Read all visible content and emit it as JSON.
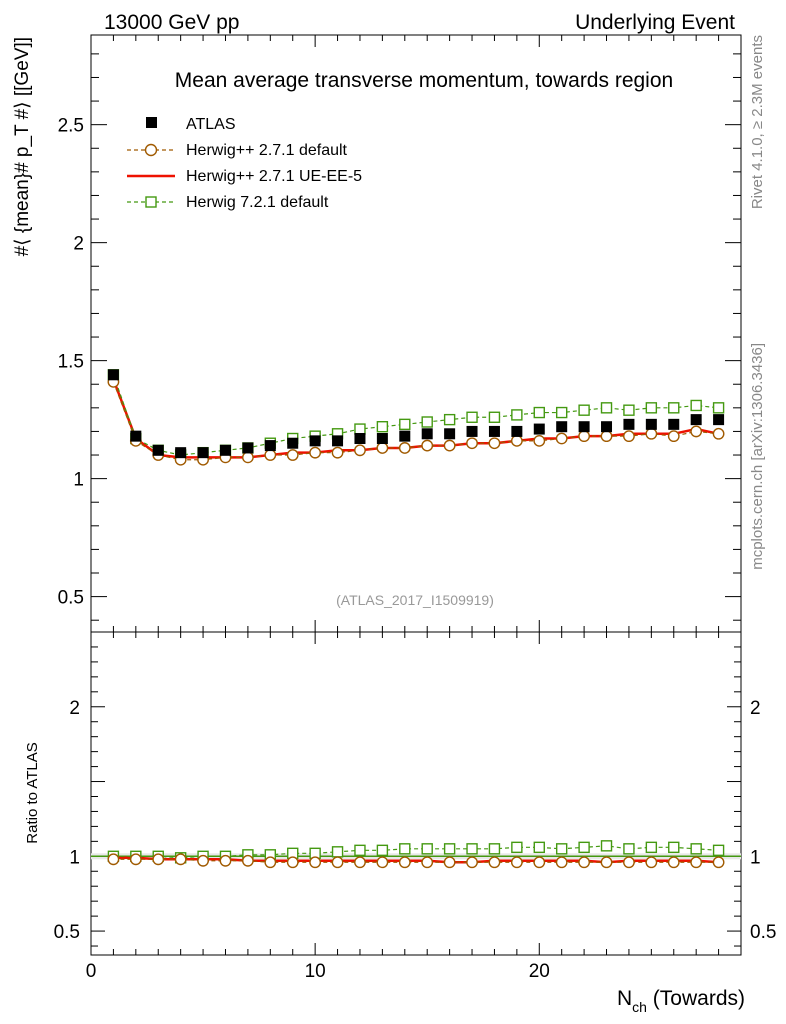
{
  "header": {
    "left": "13000 GeV pp",
    "right": "Underlying Event"
  },
  "side_labels": {
    "rivet": "Rivet 4.1.0, ≥ 2.3M events",
    "mcplots": "mcplots.cern.ch [arXiv:1306.3436]"
  },
  "colors": {
    "atlas": "#000000",
    "herwig_pp_default": "#a05a00",
    "herwig_pp_ueee5": "#ee1100",
    "herwig7_default": "#449911"
  },
  "chart_data": [
    {
      "type": "scatter",
      "title": "Mean average transverse momentum, towards region",
      "ylabel": "#⟨ {mean}# p_T #⟩ [[GeV]]",
      "xlabel": "N_ch (Towards)",
      "watermark": "(ATLAS_2017_I1509919)",
      "xlim": [
        0,
        29
      ],
      "ylim": [
        0.35,
        2.88
      ],
      "yticks": [
        0.5,
        1,
        1.5,
        2,
        2.5
      ],
      "ytick_labels": [
        "0.5",
        "1",
        "1.5",
        "2",
        "2.5"
      ],
      "legend": [
        "ATLAS",
        "Herwig++ 2.7.1 default",
        "Herwig++ 2.7.1 UE-EE-5",
        "Herwig 7.2.1 default"
      ],
      "legend_position": "top-left",
      "x": [
        1,
        2,
        3,
        4,
        5,
        6,
        7,
        8,
        9,
        10,
        11,
        12,
        13,
        14,
        15,
        16,
        17,
        18,
        19,
        20,
        21,
        22,
        23,
        24,
        25,
        26,
        27,
        28
      ],
      "series": [
        {
          "name": "ATLAS",
          "marker": "filled-square",
          "values": [
            1.44,
            1.18,
            1.12,
            1.11,
            1.11,
            1.12,
            1.13,
            1.14,
            1.15,
            1.16,
            1.16,
            1.17,
            1.17,
            1.18,
            1.19,
            1.19,
            1.2,
            1.2,
            1.2,
            1.21,
            1.22,
            1.22,
            1.22,
            1.23,
            1.23,
            1.23,
            1.25,
            1.25
          ]
        },
        {
          "name": "Herwig++ 2.7.1 default",
          "marker": "open-circle",
          "values": [
            1.41,
            1.16,
            1.1,
            1.08,
            1.08,
            1.09,
            1.09,
            1.1,
            1.1,
            1.11,
            1.11,
            1.12,
            1.13,
            1.13,
            1.14,
            1.14,
            1.15,
            1.15,
            1.16,
            1.16,
            1.17,
            1.18,
            1.18,
            1.18,
            1.19,
            1.18,
            1.2,
            1.19
          ]
        },
        {
          "name": "Herwig++ 2.7.1 UE-EE-5",
          "marker": "line",
          "values": [
            1.42,
            1.17,
            1.1,
            1.09,
            1.09,
            1.09,
            1.09,
            1.1,
            1.11,
            1.11,
            1.12,
            1.12,
            1.13,
            1.13,
            1.14,
            1.14,
            1.15,
            1.15,
            1.16,
            1.17,
            1.17,
            1.18,
            1.18,
            1.19,
            1.19,
            1.19,
            1.21,
            1.19
          ]
        },
        {
          "name": "Herwig 7.2.1 default",
          "marker": "open-square",
          "values": [
            1.44,
            1.17,
            1.12,
            1.1,
            1.11,
            1.12,
            1.13,
            1.15,
            1.17,
            1.18,
            1.19,
            1.21,
            1.22,
            1.23,
            1.24,
            1.25,
            1.26,
            1.26,
            1.27,
            1.28,
            1.28,
            1.29,
            1.3,
            1.29,
            1.3,
            1.3,
            1.31,
            1.3
          ]
        }
      ]
    },
    {
      "type": "scatter",
      "ylabel": "Ratio to ATLAS",
      "xlabel": "N_ch (Towards)",
      "xlim": [
        0,
        29
      ],
      "ylim": [
        0.34,
        2.5
      ],
      "yticks": [
        0.5,
        1,
        2
      ],
      "ytick_labels": [
        "0.5",
        "1",
        "2"
      ],
      "xticks": [
        0,
        10,
        20
      ],
      "xtick_labels": [
        "0",
        "10",
        "20"
      ],
      "x": [
        1,
        2,
        3,
        4,
        5,
        6,
        7,
        8,
        9,
        10,
        11,
        12,
        13,
        14,
        15,
        16,
        17,
        18,
        19,
        20,
        21,
        22,
        23,
        24,
        25,
        26,
        27,
        28
      ],
      "series": [
        {
          "name": "Herwig++ 2.7.1 default",
          "marker": "open-circle",
          "values": [
            0.98,
            0.98,
            0.98,
            0.98,
            0.97,
            0.97,
            0.97,
            0.96,
            0.96,
            0.96,
            0.96,
            0.96,
            0.96,
            0.96,
            0.96,
            0.96,
            0.96,
            0.96,
            0.96,
            0.96,
            0.96,
            0.96,
            0.96,
            0.96,
            0.96,
            0.96,
            0.96,
            0.96
          ]
        },
        {
          "name": "Herwig++ 2.7.1 UE-EE-5",
          "marker": "line",
          "values": [
            0.99,
            0.99,
            0.98,
            0.98,
            0.98,
            0.98,
            0.97,
            0.97,
            0.97,
            0.97,
            0.97,
            0.97,
            0.97,
            0.97,
            0.97,
            0.96,
            0.96,
            0.97,
            0.97,
            0.97,
            0.97,
            0.97,
            0.96,
            0.97,
            0.97,
            0.97,
            0.97,
            0.96
          ]
        },
        {
          "name": "Herwig 7.2.1 default",
          "marker": "open-square",
          "values": [
            1.0,
            1.0,
            1.0,
            0.99,
            1.0,
            1.0,
            1.01,
            1.01,
            1.02,
            1.02,
            1.03,
            1.04,
            1.04,
            1.05,
            1.05,
            1.05,
            1.05,
            1.05,
            1.06,
            1.06,
            1.05,
            1.06,
            1.07,
            1.05,
            1.06,
            1.06,
            1.05,
            1.04
          ]
        }
      ]
    }
  ]
}
